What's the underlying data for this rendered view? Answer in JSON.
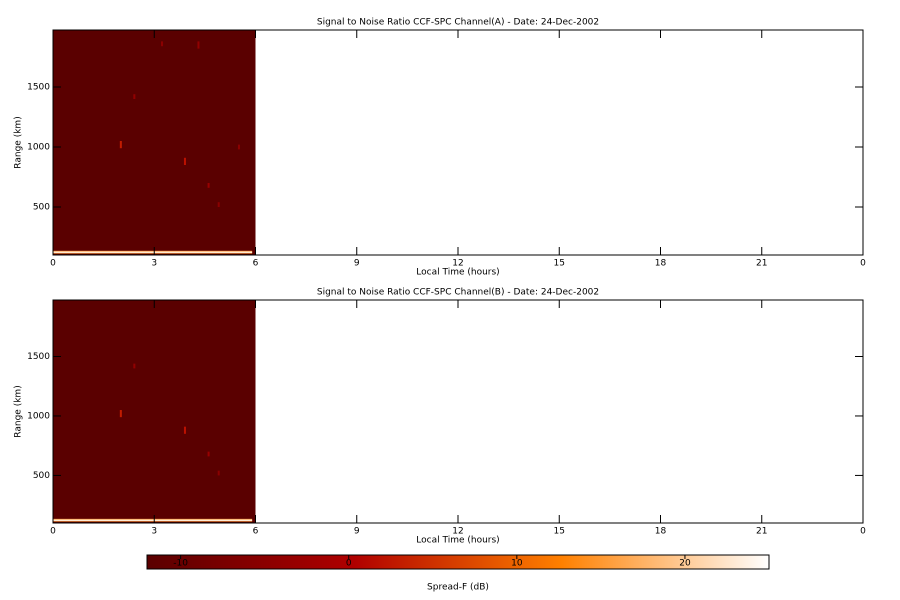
{
  "chart_data": [
    {
      "type": "heatmap",
      "title": "Signal to Noise Ratio CCF-SPC Channel(A) - Date: 24-Dec-2002",
      "xlabel": "Local Time (hours)",
      "ylabel": "Range (km)",
      "xlim": [
        0,
        24
      ],
      "xticks": [
        0,
        3,
        6,
        9,
        12,
        15,
        18,
        21,
        {
          "value": 24,
          "label": "0"
        }
      ],
      "ylim": [
        100,
        1975
      ],
      "yticks": [
        500,
        1000,
        1500
      ],
      "cells": [
        {
          "x0": 0,
          "x1": 6,
          "y0": 100,
          "y1": 1975,
          "value": -12
        },
        {
          "x0": 0,
          "x1": 5.9,
          "y0": 112,
          "y1": 135,
          "value": 16
        },
        {
          "x0": 0,
          "x1": 5.9,
          "y0": 118,
          "y1": 128,
          "value": 24
        },
        {
          "x0": 1.98,
          "x1": 2.04,
          "y0": 990,
          "y1": 1050,
          "value": 3
        },
        {
          "x0": 3.88,
          "x1": 3.94,
          "y0": 850,
          "y1": 910,
          "value": 2
        },
        {
          "x0": 2.38,
          "x1": 2.44,
          "y0": 1400,
          "y1": 1440,
          "value": -4
        },
        {
          "x0": 4.28,
          "x1": 4.34,
          "y0": 1820,
          "y1": 1880,
          "value": -4
        },
        {
          "x0": 3.2,
          "x1": 3.26,
          "y0": 1840,
          "y1": 1880,
          "value": -5
        },
        {
          "x0": 4.58,
          "x1": 4.64,
          "y0": 660,
          "y1": 700,
          "value": -3
        },
        {
          "x0": 4.88,
          "x1": 4.94,
          "y0": 500,
          "y1": 540,
          "value": -5
        },
        {
          "x0": 5.48,
          "x1": 5.54,
          "y0": 980,
          "y1": 1020,
          "value": -5
        }
      ]
    },
    {
      "type": "heatmap",
      "title": "Signal to Noise Ratio CCF-SPC Channel(B) - Date: 24-Dec-2002",
      "xlabel": "Local Time (hours)",
      "ylabel": "Range (km)",
      "xlim": [
        0,
        24
      ],
      "xticks": [
        0,
        3,
        6,
        9,
        12,
        15,
        18,
        21,
        {
          "value": 24,
          "label": "0"
        }
      ],
      "ylim": [
        100,
        1975
      ],
      "yticks": [
        500,
        1000,
        1500
      ],
      "cells": [
        {
          "x0": 0,
          "x1": 6,
          "y0": 100,
          "y1": 1975,
          "value": -12
        },
        {
          "x0": 0,
          "x1": 5.9,
          "y0": 112,
          "y1": 135,
          "value": 16
        },
        {
          "x0": 0,
          "x1": 5.9,
          "y0": 118,
          "y1": 128,
          "value": 24
        },
        {
          "x0": 1.98,
          "x1": 2.04,
          "y0": 990,
          "y1": 1050,
          "value": 3
        },
        {
          "x0": 3.88,
          "x1": 3.94,
          "y0": 850,
          "y1": 910,
          "value": 2
        },
        {
          "x0": 2.38,
          "x1": 2.44,
          "y0": 1400,
          "y1": 1440,
          "value": -4
        },
        {
          "x0": 4.58,
          "x1": 4.64,
          "y0": 660,
          "y1": 700,
          "value": -3
        },
        {
          "x0": 4.88,
          "x1": 4.94,
          "y0": 500,
          "y1": 540,
          "value": -5
        }
      ]
    },
    {
      "type": "colorbar",
      "xlabel": "Spread-F (dB)",
      "xlim": [
        -12,
        25
      ],
      "xticks": [
        -10,
        0,
        10,
        20
      ],
      "colormap": [
        "#5a0000",
        "#b00000",
        "#ff8000",
        "#ffffff"
      ]
    }
  ]
}
